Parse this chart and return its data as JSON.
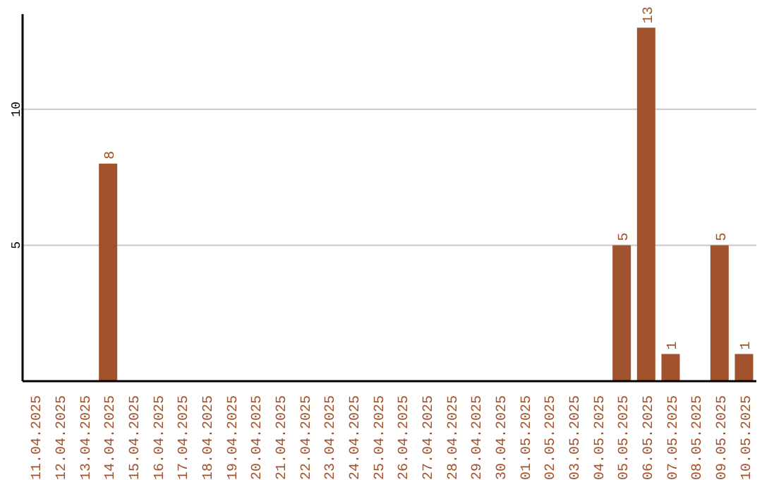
{
  "chart_data": {
    "type": "bar",
    "categories": [
      "11.04.2025",
      "12.04.2025",
      "13.04.2025",
      "14.04.2025",
      "15.04.2025",
      "16.04.2025",
      "17.04.2025",
      "18.04.2025",
      "19.04.2025",
      "20.04.2025",
      "21.04.2025",
      "22.04.2025",
      "23.04.2025",
      "24.04.2025",
      "25.04.2025",
      "26.04.2025",
      "27.04.2025",
      "28.04.2025",
      "29.04.2025",
      "30.04.2025",
      "01.05.2025",
      "02.05.2025",
      "03.05.2025",
      "04.05.2025",
      "05.05.2025",
      "06.05.2025",
      "07.05.2025",
      "08.05.2025",
      "09.05.2025",
      "10.05.2025"
    ],
    "values": [
      0,
      0,
      0,
      8,
      0,
      0,
      0,
      0,
      0,
      0,
      0,
      0,
      0,
      0,
      0,
      0,
      0,
      0,
      0,
      0,
      0,
      0,
      0,
      0,
      5,
      13,
      1,
      0,
      5,
      1
    ],
    "value_labels": [
      null,
      null,
      null,
      "8",
      null,
      null,
      null,
      null,
      null,
      null,
      null,
      null,
      null,
      null,
      null,
      null,
      null,
      null,
      null,
      null,
      null,
      null,
      null,
      null,
      "5",
      "13",
      "1",
      null,
      "5",
      "1"
    ],
    "color": "#a0522d",
    "ylim": [
      0,
      13.5
    ],
    "yticks": [
      5,
      10
    ],
    "grid": "y"
  }
}
